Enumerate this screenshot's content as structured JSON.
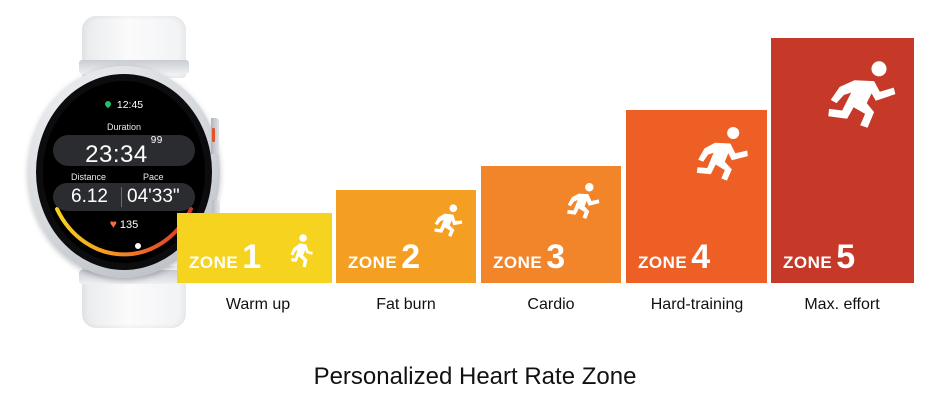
{
  "watch": {
    "time": "12:45",
    "duration_label": "Duration",
    "duration_value": "23:34",
    "duration_hundredths": "99",
    "distance_label": "Distance",
    "pace_label": "Pace",
    "distance_value": "6.12",
    "pace_value": "04'33\"",
    "heart_rate": "135",
    "icons": [
      "location-pin-icon",
      "heart-icon"
    ],
    "colors": {
      "location": "#23c06b",
      "heart": "#ff6b3d"
    }
  },
  "zones": [
    {
      "word": "ZONE",
      "number": "1",
      "caption": "Warm up",
      "color": "#f6d31e",
      "icon": "runner-icon"
    },
    {
      "word": "ZONE",
      "number": "2",
      "caption": "Fat burn",
      "color": "#f49f22",
      "icon": "runner-icon"
    },
    {
      "word": "ZONE",
      "number": "3",
      "caption": "Cardio",
      "color": "#f2842a",
      "icon": "runner-icon"
    },
    {
      "word": "ZONE",
      "number": "4",
      "caption": "Hard-training",
      "color": "#ee5f25",
      "icon": "runner-icon"
    },
    {
      "word": "ZONE",
      "number": "5",
      "caption": "Max. effort",
      "color": "#c63828",
      "icon": "runner-icon"
    }
  ],
  "title": "Personalized Heart Rate Zone"
}
